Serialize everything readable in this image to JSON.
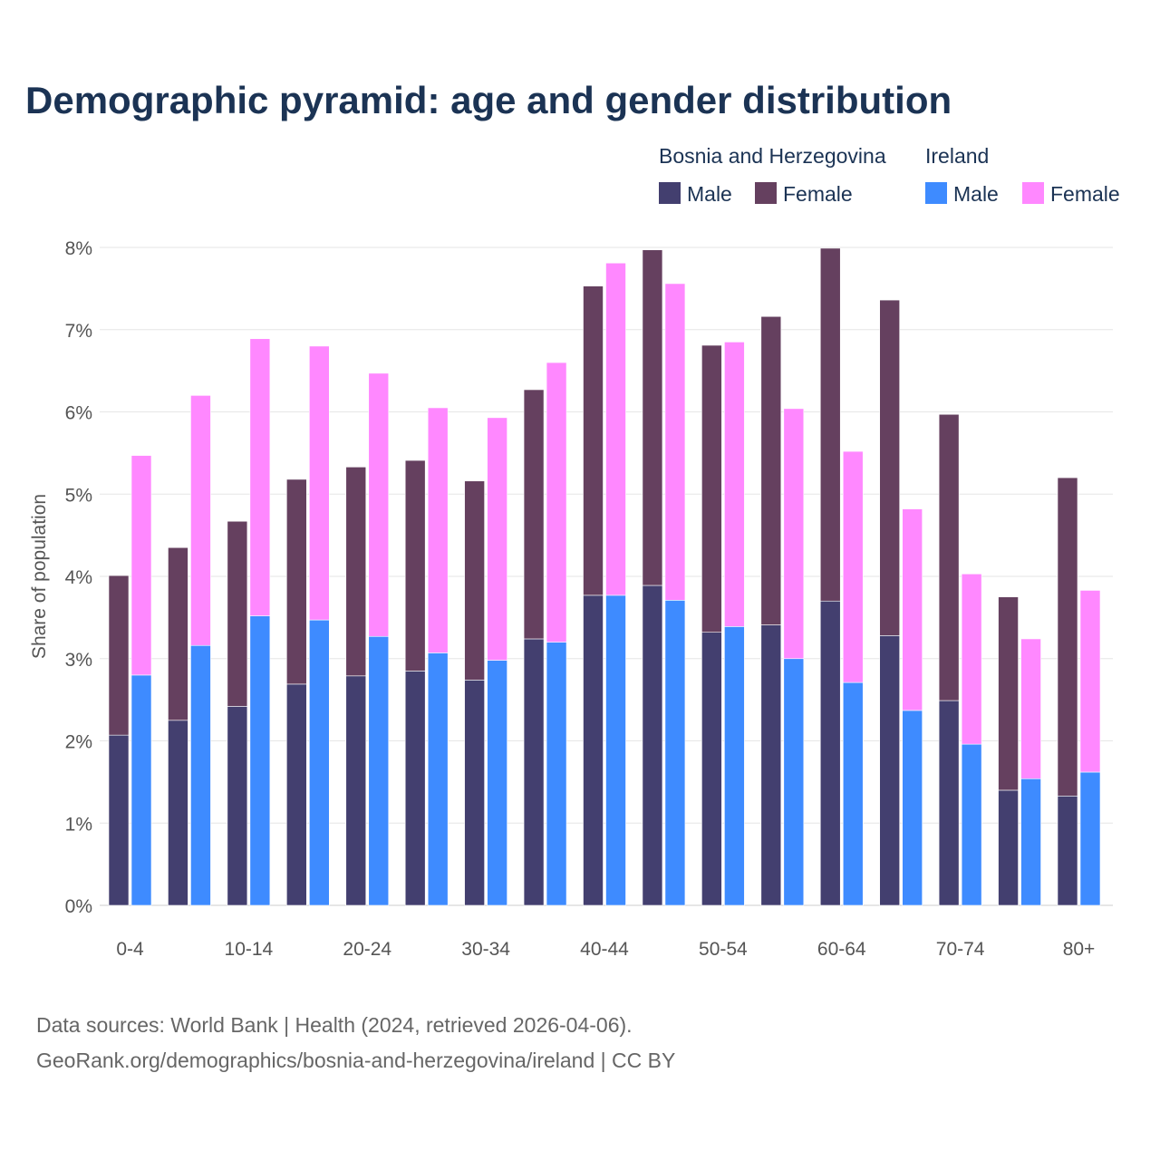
{
  "chart_data": {
    "type": "bar",
    "title": "Demographic pyramid: age and gender distribution",
    "ylabel": "Share of population",
    "xlabel": "",
    "ylim": [
      0,
      8
    ],
    "y_ticks": [
      "0%",
      "1%",
      "2%",
      "3%",
      "4%",
      "5%",
      "6%",
      "7%",
      "8%"
    ],
    "grid": true,
    "legend_position": "top-right",
    "categories": [
      "0-4",
      "5-9",
      "10-14",
      "15-19",
      "20-24",
      "25-29",
      "30-34",
      "35-39",
      "40-44",
      "45-49",
      "50-54",
      "55-59",
      "60-64",
      "65-69",
      "70-74",
      "75-79",
      "80+"
    ],
    "shown_tick_labels": [
      "0-4",
      "10-14",
      "20-24",
      "30-34",
      "40-44",
      "50-54",
      "60-64",
      "70-74",
      "80+"
    ],
    "groups": [
      {
        "name": "Bosnia and Herzegovina",
        "series": [
          {
            "name": "Male",
            "color": "#433f6f",
            "values": [
              2.07,
              2.25,
              2.42,
              2.69,
              2.79,
              2.85,
              2.74,
              3.24,
              3.77,
              3.89,
              3.32,
              3.41,
              3.7,
              3.28,
              2.49,
              1.4,
              1.33
            ]
          },
          {
            "name": "Female",
            "color": "#65405f",
            "values": [
              1.94,
              2.1,
              2.25,
              2.49,
              2.54,
              2.56,
              2.42,
              3.03,
              3.76,
              4.08,
              3.49,
              3.75,
              4.29,
              4.08,
              3.48,
              2.35,
              3.87
            ]
          }
        ]
      },
      {
        "name": "Ireland",
        "series": [
          {
            "name": "Male",
            "color": "#3e8bff",
            "values": [
              2.8,
              3.16,
              3.52,
              3.47,
              3.27,
              3.07,
              2.98,
              3.2,
              3.77,
              3.71,
              3.39,
              3.0,
              2.71,
              2.37,
              1.96,
              1.54,
              1.62
            ]
          },
          {
            "name": "Female",
            "color": "#ff88ff",
            "values": [
              2.67,
              3.04,
              3.37,
              3.33,
              3.2,
              2.98,
              2.95,
              3.4,
              4.04,
              3.85,
              3.46,
              3.04,
              2.81,
              2.45,
              2.07,
              1.7,
              2.21
            ]
          }
        ]
      }
    ]
  },
  "footer": {
    "line1": "Data sources: World Bank | Health (2024, retrieved 2026-04-06).",
    "line2": "GeoRank.org/demographics/bosnia-and-herzegovina/ireland | CC BY"
  }
}
